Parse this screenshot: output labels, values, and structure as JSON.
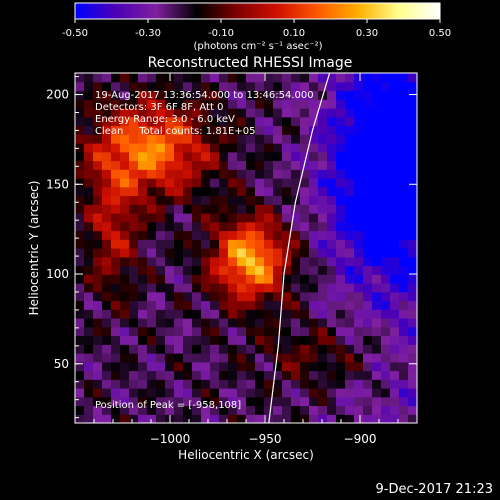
{
  "colorbar": {
    "ticks": [
      "-0.50",
      "-0.30",
      "-0.10",
      "0.10",
      "0.30",
      "0.50"
    ],
    "tick_values": [
      -0.5,
      -0.3,
      -0.1,
      0.1,
      0.3,
      0.5
    ],
    "unit_label": "(photons cm⁻² s⁻¹ asec⁻²)",
    "colors": [
      "#0000ff",
      "#4b00b4",
      "#8020a0",
      "#000000",
      "#800000",
      "#d01000",
      "#ff5a00",
      "#ffb000",
      "#ffff90",
      "#ffffff"
    ]
  },
  "chart_data": {
    "type": "heatmap",
    "title": "Reconstructed RHESSI Image",
    "xlabel": "Heliocentric X (arcsec)",
    "ylabel": "Heliocentric Y (arcsec)",
    "xlim": [
      -1050,
      -870
    ],
    "ylim": [
      17,
      212
    ],
    "xticks": [
      -1000,
      -950,
      -900
    ],
    "xtick_labels": [
      "−1000",
      "−950",
      "−900"
    ],
    "yticks": [
      50,
      100,
      150,
      200
    ],
    "ytick_labels": [
      "50",
      "100",
      "150",
      "200"
    ],
    "annotations": [
      "19-Aug-2017 13:36:54.000 to 13:46:54.000",
      "Detectors: 3F 6F 8F, Att 0",
      "Energy Range: 3.0 - 6.0 keV",
      "Clean     Total counts: 1.81E+05"
    ],
    "peak_label": "Position of Peak = [-958,108]",
    "peak": {
      "x": -958,
      "y": 108
    },
    "sources": [
      {
        "x": -958,
        "y": 108,
        "value": 0.5
      },
      {
        "x": -1010,
        "y": 170,
        "value": 0.42
      },
      {
        "x": -1030,
        "y": 125,
        "value": 0.22
      },
      {
        "x": -920,
        "y": 55,
        "value": 0.12
      },
      {
        "x": -885,
        "y": 160,
        "value": -0.45
      }
    ],
    "limb": [
      [
        -948,
        17
      ],
      [
        -943,
        60
      ],
      [
        -940,
        100
      ],
      [
        -934,
        140
      ],
      [
        -925,
        180
      ],
      [
        -916,
        212
      ]
    ]
  },
  "footer": {
    "timestamp": "9-Dec-2017 21:23"
  }
}
